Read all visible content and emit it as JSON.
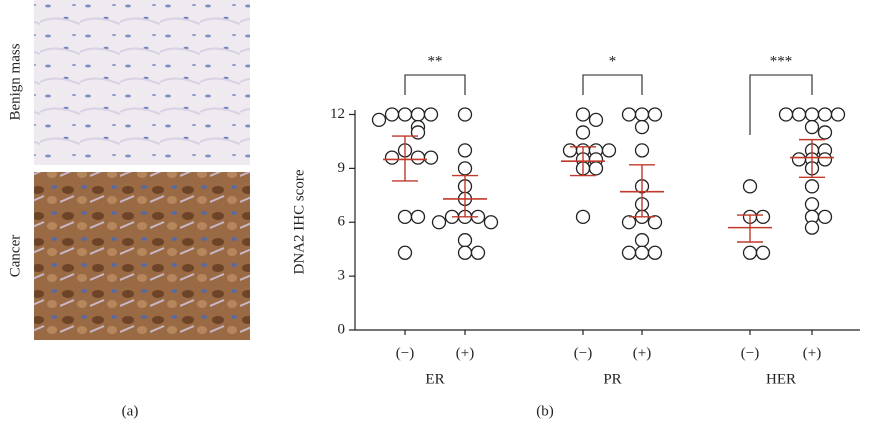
{
  "panels": {
    "a": {
      "label": "(a)",
      "images": [
        "Benign mass",
        "Cancer"
      ]
    },
    "b": {
      "label": "(b)"
    }
  },
  "chart_data": {
    "type": "scatter",
    "y_label": "DNA2 IHC score",
    "ylim": [
      0,
      12.25
    ],
    "yticks": [
      0,
      3,
      6,
      9,
      12
    ],
    "point_color": "#222222",
    "bar_color": "#c0392b",
    "groups": [
      {
        "name": "ER",
        "significance": "**",
        "categories": [
          "(−)",
          "(+)"
        ],
        "values": [
          [
            12,
            12,
            12,
            12,
            11.7,
            11.3,
            11,
            10,
            9.6,
            9.6,
            9.6,
            6.3,
            6.3,
            4.3
          ],
          [
            12,
            10,
            9,
            8,
            7.3,
            6.3,
            6.3,
            6.3,
            6,
            6,
            5,
            4.3,
            4.3
          ]
        ],
        "mean": [
          9.5,
          7.3
        ],
        "ci": [
          [
            8.3,
            10.8
          ],
          [
            6.3,
            8.6
          ]
        ]
      },
      {
        "name": "PR",
        "significance": "*",
        "categories": [
          "(−)",
          "(+)"
        ],
        "values": [
          [
            12,
            11.7,
            11,
            10,
            10,
            10,
            10,
            9.5,
            9.5,
            9,
            9,
            6.3
          ],
          [
            12,
            12,
            12,
            11.3,
            10,
            8,
            7,
            6.3,
            6,
            6,
            5,
            4.3,
            4.3,
            4.3
          ]
        ],
        "mean": [
          9.4,
          7.7
        ],
        "ci": [
          [
            8.6,
            10.2
          ],
          [
            6.3,
            9.2
          ]
        ]
      },
      {
        "name": "HER",
        "significance": "***",
        "categories": [
          "(−)",
          "(+)"
        ],
        "values": [
          [
            8,
            6.3,
            6.3,
            4.3,
            4.3
          ],
          [
            12,
            12,
            12,
            12,
            12,
            11.3,
            11,
            10,
            10,
            9.5,
            9.5,
            9.5,
            9,
            8,
            7,
            6.3,
            6.3,
            5.7
          ]
        ],
        "mean": [
          5.7,
          9.6
        ],
        "ci": [
          [
            4.9,
            6.4
          ],
          [
            8.5,
            10.6
          ]
        ]
      }
    ]
  }
}
